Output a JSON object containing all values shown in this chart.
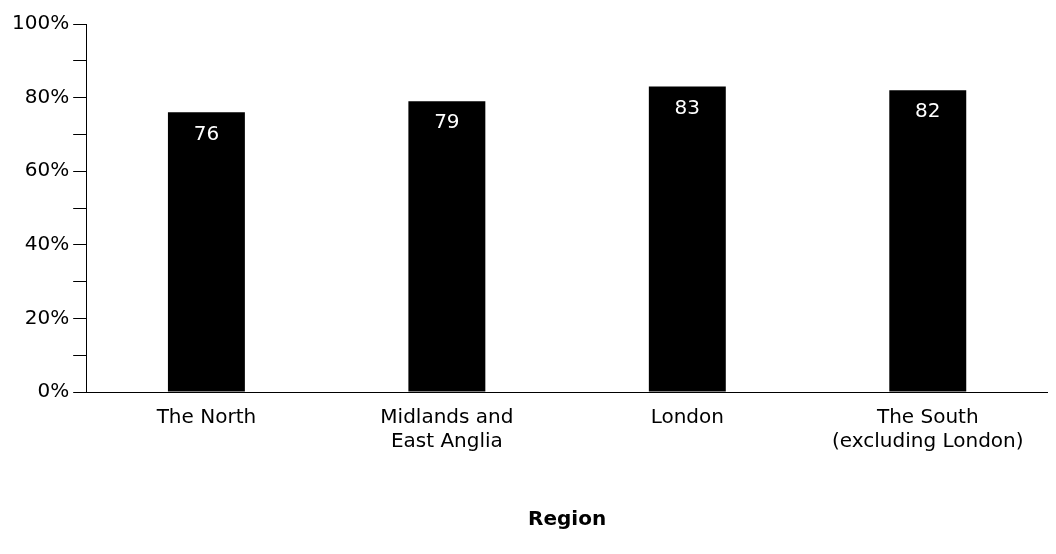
{
  "chart_data": {
    "type": "bar",
    "xlabel": "Region",
    "categories": [
      "The North",
      "Midlands and\nEast Anglia",
      "London",
      "The South\n(excluding London)"
    ],
    "values": [
      76,
      79,
      83,
      82
    ],
    "color": "#000000",
    "data_labels": true,
    "grid": false,
    "legend": false,
    "ylim": [
      0,
      100
    ],
    "yticks": [
      {
        "value": 0,
        "label": "0%"
      },
      {
        "value": 10,
        "label": null
      },
      {
        "value": 20,
        "label": "20%"
      },
      {
        "value": 30,
        "label": null
      },
      {
        "value": 40,
        "label": "40%"
      },
      {
        "value": 50,
        "label": null
      },
      {
        "value": 60,
        "label": "60%"
      },
      {
        "value": 70,
        "label": null
      },
      {
        "value": 80,
        "label": "80%"
      },
      {
        "value": 90,
        "label": null
      },
      {
        "value": 100,
        "label": "100%"
      }
    ]
  }
}
